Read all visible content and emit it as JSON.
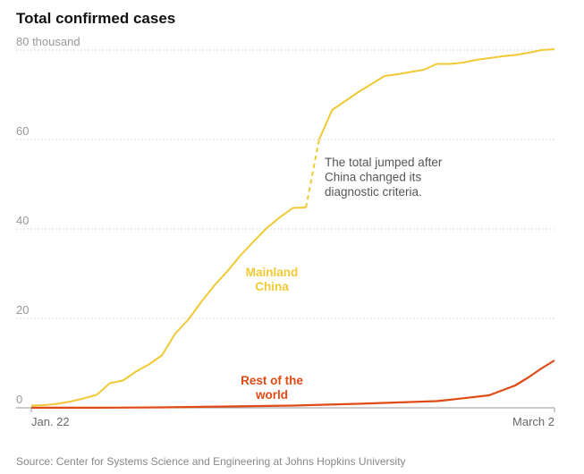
{
  "title": "Total confirmed cases",
  "source": "Source: Center for Systems Science and Engineering at Johns Hopkins University",
  "colors": {
    "china": "#f0c934",
    "rest": "#e04a14",
    "grid": "#dddddd",
    "axis": "#999999"
  },
  "chart_data": {
    "type": "line",
    "title": "Total confirmed cases",
    "xlabel": "",
    "ylabel": "",
    "x_tick_labels": [
      "Jan. 22",
      "March 2"
    ],
    "y_ticks": [
      0,
      20,
      40,
      60,
      80
    ],
    "y_tick_labels": [
      "0",
      "20",
      "40",
      "60",
      "80 thousand"
    ],
    "ylim": [
      0,
      80
    ],
    "xlim": [
      "Jan. 22",
      "March 2"
    ],
    "grid": true,
    "series": [
      {
        "name": "Mainland China",
        "label_lines": [
          "Mainland",
          "China"
        ],
        "x": [
          0,
          1,
          2,
          3,
          4,
          5,
          6,
          7,
          8,
          9,
          10,
          11,
          12,
          13,
          14,
          15,
          16,
          17,
          18,
          19,
          20,
          21,
          22,
          23,
          24,
          25,
          26,
          27,
          28,
          29,
          30,
          31,
          32,
          33,
          34,
          35,
          36,
          37,
          38,
          39,
          40
        ],
        "values": [
          0.5,
          0.6,
          0.9,
          1.4,
          2.1,
          2.9,
          5.5,
          6.1,
          8.1,
          9.7,
          11.8,
          16.6,
          19.7,
          23.7,
          27.4,
          30.6,
          34.1,
          37.2,
          40.2,
          42.6,
          44.7,
          44.8,
          60.0,
          66.6,
          68.6,
          70.6,
          72.4,
          74.2,
          74.6,
          75.1,
          75.6,
          76.9,
          76.9,
          77.2,
          77.8,
          78.2,
          78.6,
          78.9,
          79.4,
          80.0,
          80.2
        ]
      },
      {
        "name": "Rest of the world",
        "label_lines": [
          "Rest of the",
          "world"
        ],
        "x": [
          0,
          5,
          10,
          15,
          20,
          25,
          28,
          31,
          32,
          35,
          37,
          38,
          39,
          40
        ],
        "values": [
          0.01,
          0.03,
          0.1,
          0.3,
          0.5,
          0.9,
          1.2,
          1.5,
          1.8,
          2.8,
          5.0,
          6.8,
          8.8,
          10.6
        ]
      }
    ],
    "annotations": [
      {
        "text_lines": [
          "The total jumped after",
          "China changed its",
          "diagnostic criteria."
        ],
        "applies_to": "Mainland China",
        "between_x": [
          21,
          22
        ]
      }
    ]
  }
}
